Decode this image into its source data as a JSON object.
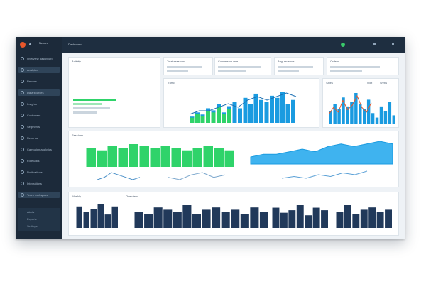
{
  "window": {
    "brand": "Nexora",
    "title": "Dashboard"
  },
  "sidebar": {
    "items": [
      {
        "label": "Overview dashboard",
        "icon": "home-icon",
        "active": false
      },
      {
        "label": "Analytics",
        "icon": "chart-icon",
        "active": true
      },
      {
        "label": "Reports",
        "icon": "file-icon",
        "active": false
      },
      {
        "label": "Data sources",
        "icon": "database-icon",
        "active": true
      },
      {
        "label": "Insights",
        "icon": "bulb-icon",
        "active": false
      },
      {
        "label": "Customers",
        "icon": "users-icon",
        "active": false
      },
      {
        "label": "Segments",
        "icon": "layers-icon",
        "active": false
      },
      {
        "label": "Revenue",
        "icon": "dollar-icon",
        "active": false
      },
      {
        "label": "Campaign analytics",
        "icon": "megaphone-icon",
        "active": false
      },
      {
        "label": "Forecasts",
        "icon": "trend-icon",
        "active": false
      },
      {
        "label": "Notifications",
        "icon": "bell-icon",
        "active": false
      },
      {
        "label": "Integrations",
        "icon": "plug-icon",
        "active": false
      },
      {
        "label": "Team workspace",
        "icon": "grid-icon",
        "active": true
      }
    ],
    "sub_items": [
      "Alerts",
      "Exports",
      "Settings"
    ]
  },
  "kpis": [
    {
      "label": "Total sessions"
    },
    {
      "label": "Conversion rate"
    },
    {
      "label": "Avg. revenue"
    },
    {
      "label": "Orders"
    }
  ],
  "panels": {
    "activity_title": "Activity",
    "sales_title": "Sales",
    "sales_tab": "Odz",
    "sales_tab2": "Webs",
    "traffic_title": "Traffic",
    "traffic_sub": "Sessions",
    "bottom_title": "Weekly",
    "bottom_sub": "Overview"
  },
  "colors": {
    "sidebar": "#1c2a3a",
    "topbar": "#1e2e40",
    "accent_green": "#2fd36a",
    "accent_blue": "#1a9be0",
    "navy_bar": "#21395a",
    "status_green": "#39c96a",
    "logo_orange": "#e8572b"
  },
  "chart_data": [
    {
      "type": "bar",
      "values": [
        3,
        5,
        4,
        7,
        6,
        9,
        5,
        8,
        10,
        7,
        12,
        9,
        14,
        11,
        10,
        13,
        12,
        15,
        9,
        11
      ]
    },
    {
      "type": "bar",
      "values": [
        6,
        9,
        7,
        12,
        8,
        10,
        14,
        9,
        7,
        11,
        5,
        3,
        8,
        6,
        10,
        4
      ]
    },
    {
      "type": "bar",
      "values": [
        9,
        8,
        10,
        9,
        11,
        10,
        9,
        10,
        9,
        8,
        9,
        10,
        9,
        8
      ]
    },
    {
      "type": "area",
      "values": [
        4,
        5,
        5,
        6,
        7,
        6,
        8,
        9,
        8,
        9,
        10,
        9
      ]
    },
    {
      "type": "bar",
      "values": [
        8,
        6,
        7,
        9,
        5,
        8,
        7,
        6,
        9,
        8,
        7,
        10,
        6,
        8,
        9,
        7,
        8,
        6,
        9,
        7
      ]
    }
  ]
}
